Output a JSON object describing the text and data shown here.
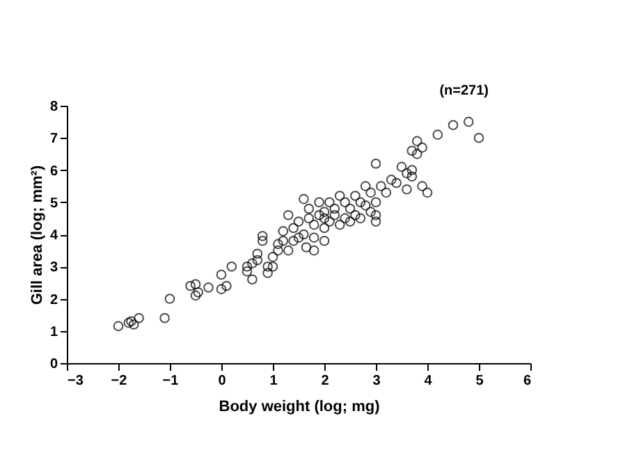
{
  "chart_data": {
    "type": "scatter",
    "xlabel": "Body weight (log; mg)",
    "ylabel": "Gill area (log; mm²)",
    "annotations": [
      "(n=271)"
    ],
    "xlim": [
      -3,
      6
    ],
    "xticks": [
      -3,
      -2,
      -1,
      0,
      1,
      2,
      3,
      4,
      5,
      6
    ],
    "ylim": [
      0,
      8
    ],
    "yticks": [
      0,
      1,
      2,
      3,
      4,
      5,
      6,
      7,
      8
    ],
    "grid": false,
    "marker": "circle",
    "series": [
      {
        "color": "#000000",
        "x": [
          -2,
          -1.8,
          -1.75,
          -1.7,
          -1.6,
          -1.1,
          -1,
          -0.6,
          -0.5,
          -0.5,
          -0.45,
          -0.25,
          0,
          0,
          0.1,
          0.2,
          0.5,
          0.5,
          0.6,
          0.6,
          0.7,
          0.7,
          0.8,
          0.8,
          0.9,
          0.9,
          1,
          1,
          1.1,
          1.1,
          1.2,
          1.2,
          1.3,
          1.3,
          1.4,
          1.4,
          1.5,
          1.5,
          1.6,
          1.6,
          1.65,
          1.7,
          1.7,
          1.8,
          1.8,
          1.8,
          1.9,
          1.9,
          2,
          2,
          2,
          2,
          2.1,
          2.1,
          2.2,
          2.2,
          2.3,
          2.3,
          2.4,
          2.4,
          2.5,
          2.5,
          2.6,
          2.6,
          2.7,
          2.7,
          2.8,
          2.8,
          2.9,
          2.9,
          3,
          3,
          3,
          3,
          3.1,
          3.2,
          3.3,
          3.4,
          3.5,
          3.6,
          3.7,
          3.7,
          3.8,
          3.8,
          3.9,
          4,
          4.2,
          4.5,
          4.8,
          5,
          3.9,
          3.6,
          3.7
        ],
        "values": [
          1.15,
          1.25,
          1.3,
          1.2,
          1.4,
          1.4,
          2.0,
          2.4,
          2.1,
          2.45,
          2.2,
          2.35,
          2.3,
          2.75,
          2.4,
          3.0,
          3.0,
          2.85,
          3.1,
          2.6,
          3.2,
          3.4,
          3.8,
          3.95,
          3.0,
          2.8,
          3.0,
          3.3,
          3.7,
          3.5,
          3.8,
          4.1,
          4.6,
          3.5,
          3.8,
          4.2,
          4.4,
          3.9,
          4.0,
          5.1,
          3.6,
          4.5,
          4.8,
          3.9,
          4.3,
          3.5,
          4.6,
          5.0,
          4.2,
          4.5,
          4.7,
          3.8,
          4.4,
          5.0,
          4.6,
          4.8,
          4.3,
          5.2,
          4.5,
          5.0,
          4.4,
          4.8,
          5.2,
          4.6,
          5.0,
          4.5,
          5.5,
          4.9,
          5.3,
          4.7,
          6.2,
          5.0,
          4.6,
          4.4,
          5.5,
          5.3,
          5.7,
          5.6,
          6.1,
          5.4,
          6.0,
          6.6,
          6.5,
          6.9,
          6.7,
          5.3,
          7.1,
          7.4,
          7.5,
          7.0,
          5.5,
          5.9,
          5.8
        ]
      }
    ]
  }
}
